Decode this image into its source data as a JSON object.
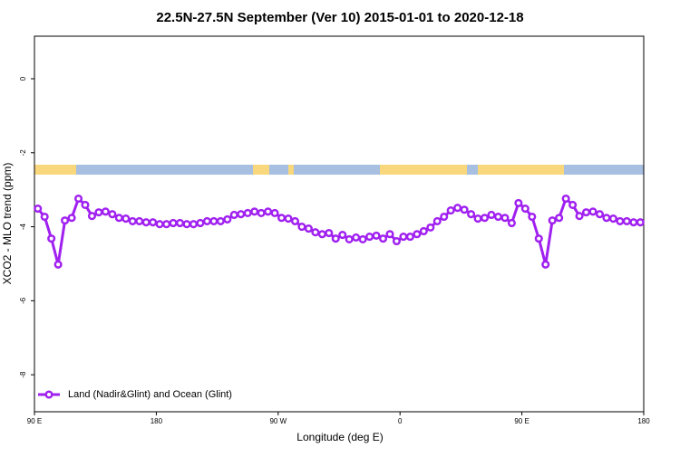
{
  "chart_data": {
    "type": "line",
    "title": "22.5N-27.5N September (Ver 10)   2015-01-01 to 2020-12-18",
    "xlabel": "Longitude (deg E)",
    "ylabel": "XCO2 - MLO trend (ppm)",
    "xlim": [
      90,
      540
    ],
    "ylim": [
      -9,
      1.15
    ],
    "xticks": [
      {
        "value": 90,
        "label": "90 E"
      },
      180,
      {
        "value": 270,
        "label": "90 W"
      },
      {
        "value": 360,
        "label": "0"
      },
      {
        "value": 450,
        "label": "90 E"
      },
      {
        "value": 540,
        "label": "180"
      }
    ],
    "yticks": [
      0,
      -2,
      -4,
      -6,
      -8
    ],
    "legend": "bottom-left",
    "series": [
      {
        "name": "Land (Nadir&Glint) and Ocean (Glint)",
        "color": "#a020f0",
        "x": [
          92.5,
          97.5,
          102.5,
          107.5,
          112.5,
          117.5,
          122.5,
          127.5,
          132.5,
          137.5,
          142.5,
          147.5,
          152.5,
          157.5,
          162.5,
          167.5,
          172.5,
          177.5,
          182.5,
          187.5,
          192.5,
          197.5,
          202.5,
          207.5,
          212.5,
          217.5,
          222.5,
          227.5,
          232.5,
          237.5,
          242.5,
          247.5,
          252.5,
          257.5,
          262.5,
          267.5,
          272.5,
          277.5,
          282.5,
          287.5,
          292.5,
          297.5,
          302.5,
          307.5,
          312.5,
          317.5,
          322.5,
          327.5,
          332.5,
          337.5,
          342.5,
          347.5,
          352.5,
          357.5,
          362.5,
          367.5,
          372.5,
          377.5,
          382.5,
          387.5,
          392.5,
          397.5,
          402.5,
          407.5,
          412.5,
          417.5,
          422.5,
          427.5,
          432.5,
          437.5,
          442.5,
          447.5,
          452.5,
          457.5,
          462.5,
          467.5,
          472.5,
          477.5,
          482.5,
          487.5,
          492.5,
          497.5,
          502.5,
          507.5,
          512.5,
          517.5,
          522.5,
          527.5,
          532.5,
          537.5
        ],
        "values": [
          -3.51,
          -3.73,
          -4.32,
          -5.02,
          -3.83,
          -3.76,
          -3.24,
          -3.41,
          -3.71,
          -3.61,
          -3.59,
          -3.66,
          -3.76,
          -3.78,
          -3.85,
          -3.85,
          -3.88,
          -3.88,
          -3.93,
          -3.93,
          -3.9,
          -3.9,
          -3.93,
          -3.93,
          -3.9,
          -3.85,
          -3.85,
          -3.85,
          -3.8,
          -3.68,
          -3.66,
          -3.63,
          -3.59,
          -3.63,
          -3.59,
          -3.63,
          -3.76,
          -3.78,
          -3.85,
          -4.0,
          -4.05,
          -4.15,
          -4.2,
          -4.17,
          -4.32,
          -4.22,
          -4.34,
          -4.29,
          -4.34,
          -4.27,
          -4.24,
          -4.32,
          -4.2,
          -4.39,
          -4.27,
          -4.27,
          -4.2,
          -4.12,
          -4.02,
          -3.85,
          -3.73,
          -3.56,
          -3.49,
          -3.54,
          -3.66,
          -3.78,
          -3.76,
          -3.68,
          -3.73,
          -3.76,
          -3.9,
          -3.36,
          -3.51,
          -3.73,
          -4.32,
          -5.02,
          -3.83,
          -3.76,
          -3.24,
          -3.41,
          -3.71,
          -3.61,
          -3.59,
          -3.66,
          -3.76,
          -3.78,
          -3.85,
          -3.85,
          -3.88,
          -3.88
        ]
      }
    ]
  }
}
